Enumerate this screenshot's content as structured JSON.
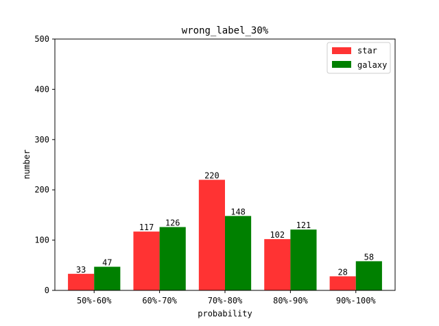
{
  "chart_data": {
    "type": "bar",
    "title": "wrong_label_30%",
    "xlabel": "probability",
    "ylabel": "number",
    "categories": [
      "50%-60%",
      "60%-70%",
      "70%-80%",
      "80%-90%",
      "90%-100%"
    ],
    "series": [
      {
        "name": "star",
        "values": [
          33,
          117,
          220,
          102,
          28
        ],
        "color": "#ff3333"
      },
      {
        "name": "galaxy",
        "values": [
          47,
          126,
          148,
          121,
          58
        ],
        "color": "#008000"
      }
    ],
    "ylim": [
      0,
      500
    ],
    "yticks": [
      0,
      100,
      200,
      300,
      400,
      500
    ],
    "grid": false,
    "legend_position": "top-right"
  }
}
